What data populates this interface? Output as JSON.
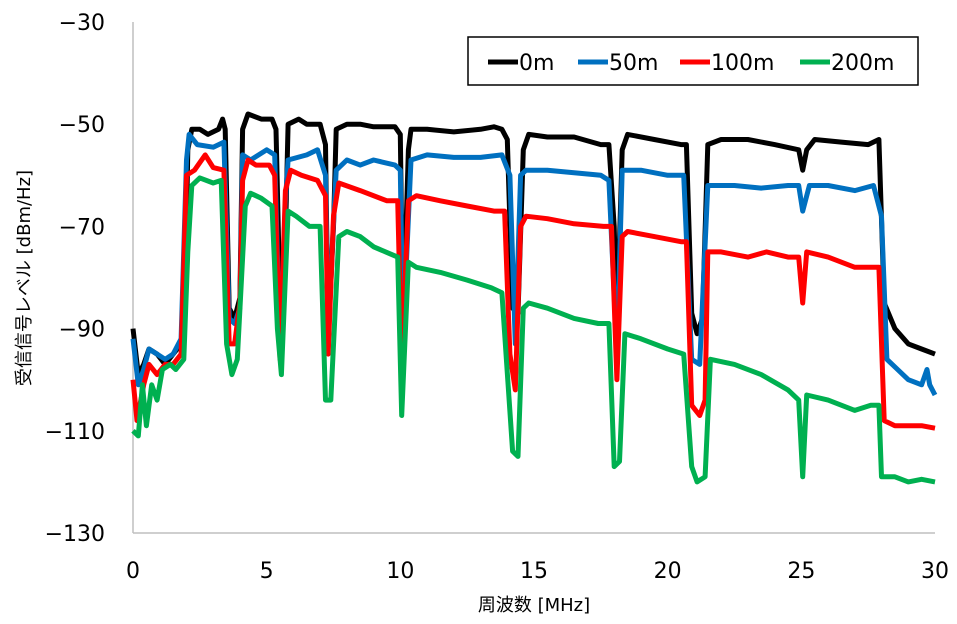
{
  "chart_data": {
    "type": "line",
    "xlabel": "周波数 [MHz]",
    "ylabel": "受信信号レベル [dBm/Hz]",
    "xlim": [
      0,
      30
    ],
    "ylim": [
      -130,
      -30
    ],
    "xticks": [
      0,
      5,
      10,
      15,
      20,
      25,
      30
    ],
    "yticks": [
      -30,
      -50,
      -70,
      -90,
      -110,
      -130
    ],
    "grid": false,
    "legend_position": "top-right",
    "series": [
      {
        "name": "0m",
        "color": "#000000",
        "points": [
          [
            0,
            -90
          ],
          [
            0.2,
            -99
          ],
          [
            0.4,
            -97
          ],
          [
            0.6,
            -94
          ],
          [
            0.9,
            -95
          ],
          [
            1.2,
            -97
          ],
          [
            1.5,
            -95
          ],
          [
            1.8,
            -93
          ],
          [
            1.95,
            -85
          ],
          [
            2.05,
            -55
          ],
          [
            2.2,
            -51
          ],
          [
            2.5,
            -51
          ],
          [
            2.8,
            -52
          ],
          [
            3.2,
            -51
          ],
          [
            3.35,
            -49
          ],
          [
            3.45,
            -51
          ],
          [
            3.6,
            -86
          ],
          [
            3.8,
            -88
          ],
          [
            4.0,
            -84
          ],
          [
            4.1,
            -51
          ],
          [
            4.3,
            -48
          ],
          [
            4.8,
            -49
          ],
          [
            5.2,
            -49
          ],
          [
            5.35,
            -51
          ],
          [
            5.5,
            -85
          ],
          [
            5.7,
            -72
          ],
          [
            5.8,
            -50
          ],
          [
            6.2,
            -49
          ],
          [
            6.5,
            -50
          ],
          [
            7.0,
            -50
          ],
          [
            7.2,
            -54
          ],
          [
            7.3,
            -92
          ],
          [
            7.5,
            -70
          ],
          [
            7.6,
            -51
          ],
          [
            8,
            -50
          ],
          [
            8.5,
            -50
          ],
          [
            9,
            -50.5
          ],
          [
            9.8,
            -50.5
          ],
          [
            10.0,
            -52
          ],
          [
            10.1,
            -90
          ],
          [
            10.3,
            -55
          ],
          [
            10.4,
            -51
          ],
          [
            11,
            -51
          ],
          [
            12,
            -51.5
          ],
          [
            13,
            -51
          ],
          [
            13.5,
            -50.5
          ],
          [
            13.8,
            -51
          ],
          [
            14.0,
            -53
          ],
          [
            14.2,
            -86
          ],
          [
            14.4,
            -87
          ],
          [
            14.6,
            -55
          ],
          [
            14.8,
            -52
          ],
          [
            15.5,
            -52.5
          ],
          [
            16.5,
            -52.5
          ],
          [
            17.5,
            -54
          ],
          [
            17.8,
            -54
          ],
          [
            18.0,
            -70
          ],
          [
            18.1,
            -90
          ],
          [
            18.3,
            -55
          ],
          [
            18.5,
            -52
          ],
          [
            19.5,
            -53
          ],
          [
            20.5,
            -54
          ],
          [
            20.7,
            -54
          ],
          [
            20.9,
            -87
          ],
          [
            21.1,
            -91
          ],
          [
            21.3,
            -88
          ],
          [
            21.5,
            -54
          ],
          [
            22,
            -53
          ],
          [
            23,
            -53
          ],
          [
            24,
            -54
          ],
          [
            24.9,
            -55
          ],
          [
            25.05,
            -59
          ],
          [
            25.2,
            -55
          ],
          [
            25.5,
            -53
          ],
          [
            26.5,
            -53.5
          ],
          [
            27.5,
            -54
          ],
          [
            27.9,
            -53
          ],
          [
            28.1,
            -85
          ],
          [
            28.5,
            -90
          ],
          [
            29,
            -93
          ],
          [
            29.5,
            -94
          ],
          [
            30,
            -95
          ]
        ]
      },
      {
        "name": "50m",
        "color": "#0070C0",
        "points": [
          [
            0,
            -92
          ],
          [
            0.2,
            -101
          ],
          [
            0.4,
            -98
          ],
          [
            0.6,
            -94
          ],
          [
            0.9,
            -95
          ],
          [
            1.2,
            -96
          ],
          [
            1.5,
            -95
          ],
          [
            1.8,
            -92
          ],
          [
            2.0,
            -57
          ],
          [
            2.1,
            -52
          ],
          [
            2.4,
            -54
          ],
          [
            3.0,
            -54.5
          ],
          [
            3.4,
            -53.5
          ],
          [
            3.6,
            -88
          ],
          [
            3.8,
            -89
          ],
          [
            4.0,
            -86
          ],
          [
            4.1,
            -56
          ],
          [
            4.4,
            -57
          ],
          [
            5.0,
            -55
          ],
          [
            5.3,
            -56
          ],
          [
            5.5,
            -95
          ],
          [
            5.7,
            -65
          ],
          [
            5.8,
            -57
          ],
          [
            6.5,
            -56
          ],
          [
            6.9,
            -55
          ],
          [
            7.2,
            -60
          ],
          [
            7.3,
            -90
          ],
          [
            7.6,
            -59
          ],
          [
            8,
            -57
          ],
          [
            8.5,
            -58
          ],
          [
            9,
            -57
          ],
          [
            9.8,
            -58
          ],
          [
            10.0,
            -59
          ],
          [
            10.1,
            -92
          ],
          [
            10.4,
            -57
          ],
          [
            11,
            -56
          ],
          [
            12,
            -56.5
          ],
          [
            13,
            -56.5
          ],
          [
            13.8,
            -56
          ],
          [
            14.1,
            -60
          ],
          [
            14.3,
            -93
          ],
          [
            14.5,
            -60
          ],
          [
            14.7,
            -59
          ],
          [
            15.5,
            -59
          ],
          [
            16.5,
            -59.5
          ],
          [
            17.5,
            -60
          ],
          [
            17.8,
            -61
          ],
          [
            18.1,
            -95
          ],
          [
            18.3,
            -59
          ],
          [
            19,
            -59
          ],
          [
            20,
            -60
          ],
          [
            20.6,
            -60
          ],
          [
            20.9,
            -96
          ],
          [
            21.2,
            -97
          ],
          [
            21.5,
            -62
          ],
          [
            22.5,
            -62
          ],
          [
            23.5,
            -62.5
          ],
          [
            24.5,
            -62
          ],
          [
            24.9,
            -62
          ],
          [
            25.05,
            -67
          ],
          [
            25.3,
            -62
          ],
          [
            26,
            -62
          ],
          [
            27,
            -63
          ],
          [
            27.7,
            -62
          ],
          [
            28,
            -68
          ],
          [
            28.2,
            -96
          ],
          [
            28.6,
            -98
          ],
          [
            29,
            -100
          ],
          [
            29.5,
            -101
          ],
          [
            29.7,
            -98
          ],
          [
            29.8,
            -101
          ],
          [
            30,
            -103
          ]
        ]
      },
      {
        "name": "100m",
        "color": "#FF0000",
        "points": [
          [
            0,
            -100
          ],
          [
            0.15,
            -108
          ],
          [
            0.4,
            -101
          ],
          [
            0.6,
            -97
          ],
          [
            0.9,
            -99
          ],
          [
            1.2,
            -97
          ],
          [
            1.5,
            -97
          ],
          [
            1.8,
            -95
          ],
          [
            2.0,
            -60
          ],
          [
            2.3,
            -59
          ],
          [
            2.7,
            -56
          ],
          [
            3.0,
            -58.5
          ],
          [
            3.4,
            -59
          ],
          [
            3.6,
            -93
          ],
          [
            3.8,
            -93
          ],
          [
            4.0,
            -85
          ],
          [
            4.1,
            -61
          ],
          [
            4.3,
            -57
          ],
          [
            4.6,
            -58
          ],
          [
            5.1,
            -58
          ],
          [
            5.3,
            -60
          ],
          [
            5.5,
            -96
          ],
          [
            5.7,
            -63
          ],
          [
            5.9,
            -59
          ],
          [
            6.3,
            -60
          ],
          [
            6.9,
            -61
          ],
          [
            7.2,
            -64
          ],
          [
            7.3,
            -95
          ],
          [
            7.5,
            -68
          ],
          [
            7.7,
            -61.5
          ],
          [
            8.5,
            -63
          ],
          [
            9.5,
            -65
          ],
          [
            9.9,
            -65
          ],
          [
            10.05,
            -97
          ],
          [
            10.3,
            -65
          ],
          [
            10.6,
            -64
          ],
          [
            11.5,
            -65
          ],
          [
            12.5,
            -66
          ],
          [
            13.5,
            -67
          ],
          [
            13.9,
            -67
          ],
          [
            14.1,
            -95
          ],
          [
            14.3,
            -102
          ],
          [
            14.5,
            -70
          ],
          [
            14.7,
            -68
          ],
          [
            15.5,
            -68.5
          ],
          [
            16.5,
            -69.5
          ],
          [
            17.6,
            -70
          ],
          [
            17.9,
            -70
          ],
          [
            18.1,
            -100
          ],
          [
            18.3,
            -72
          ],
          [
            18.5,
            -71
          ],
          [
            19.5,
            -72
          ],
          [
            20.5,
            -73
          ],
          [
            20.7,
            -73
          ],
          [
            20.9,
            -105
          ],
          [
            21.2,
            -107
          ],
          [
            21.4,
            -104
          ],
          [
            21.5,
            -75
          ],
          [
            22,
            -75
          ],
          [
            23,
            -76
          ],
          [
            23.7,
            -75
          ],
          [
            24.5,
            -76
          ],
          [
            24.9,
            -76
          ],
          [
            25.05,
            -85
          ],
          [
            25.2,
            -75
          ],
          [
            26,
            -76
          ],
          [
            27,
            -78
          ],
          [
            27.9,
            -78
          ],
          [
            28.1,
            -108
          ],
          [
            28.5,
            -109
          ],
          [
            29,
            -109
          ],
          [
            29.5,
            -109
          ],
          [
            30,
            -109.5
          ]
        ]
      },
      {
        "name": "200m",
        "color": "#00B050",
        "points": [
          [
            0,
            -110
          ],
          [
            0.2,
            -111
          ],
          [
            0.35,
            -101
          ],
          [
            0.5,
            -109
          ],
          [
            0.7,
            -101
          ],
          [
            0.9,
            -104
          ],
          [
            1.1,
            -98
          ],
          [
            1.4,
            -97
          ],
          [
            1.6,
            -98
          ],
          [
            1.9,
            -96
          ],
          [
            2.05,
            -75
          ],
          [
            2.2,
            -62
          ],
          [
            2.5,
            -60.5
          ],
          [
            3.0,
            -61.5
          ],
          [
            3.3,
            -61
          ],
          [
            3.5,
            -93
          ],
          [
            3.7,
            -99
          ],
          [
            3.9,
            -96
          ],
          [
            4.2,
            -66
          ],
          [
            4.4,
            -63.5
          ],
          [
            4.8,
            -64.5
          ],
          [
            5.2,
            -66
          ],
          [
            5.4,
            -90
          ],
          [
            5.55,
            -99
          ],
          [
            5.8,
            -67
          ],
          [
            6.1,
            -68
          ],
          [
            6.6,
            -70
          ],
          [
            7.0,
            -70
          ],
          [
            7.2,
            -104
          ],
          [
            7.4,
            -104
          ],
          [
            7.7,
            -72
          ],
          [
            8.0,
            -71
          ],
          [
            8.5,
            -72
          ],
          [
            9.0,
            -74
          ],
          [
            9.9,
            -76
          ],
          [
            10.05,
            -107
          ],
          [
            10.3,
            -77
          ],
          [
            10.6,
            -78
          ],
          [
            11.5,
            -79
          ],
          [
            12.5,
            -80.5
          ],
          [
            13.4,
            -82
          ],
          [
            13.8,
            -83
          ],
          [
            14.2,
            -114
          ],
          [
            14.4,
            -115
          ],
          [
            14.6,
            -86
          ],
          [
            14.8,
            -85
          ],
          [
            15.5,
            -86
          ],
          [
            16.5,
            -88
          ],
          [
            17.4,
            -89
          ],
          [
            17.8,
            -89
          ],
          [
            18.0,
            -117
          ],
          [
            18.2,
            -116
          ],
          [
            18.4,
            -91
          ],
          [
            19,
            -92
          ],
          [
            20,
            -94
          ],
          [
            20.6,
            -95
          ],
          [
            20.9,
            -117
          ],
          [
            21.1,
            -120
          ],
          [
            21.4,
            -119
          ],
          [
            21.6,
            -96
          ],
          [
            22.5,
            -97
          ],
          [
            23.5,
            -99
          ],
          [
            24.5,
            -102
          ],
          [
            24.9,
            -104
          ],
          [
            25.05,
            -119
          ],
          [
            25.2,
            -103
          ],
          [
            26,
            -104
          ],
          [
            27,
            -106
          ],
          [
            27.6,
            -105
          ],
          [
            27.9,
            -105
          ],
          [
            28.0,
            -119
          ],
          [
            28.5,
            -119
          ],
          [
            29,
            -120
          ],
          [
            29.5,
            -119.5
          ],
          [
            30,
            -120
          ]
        ]
      }
    ]
  }
}
